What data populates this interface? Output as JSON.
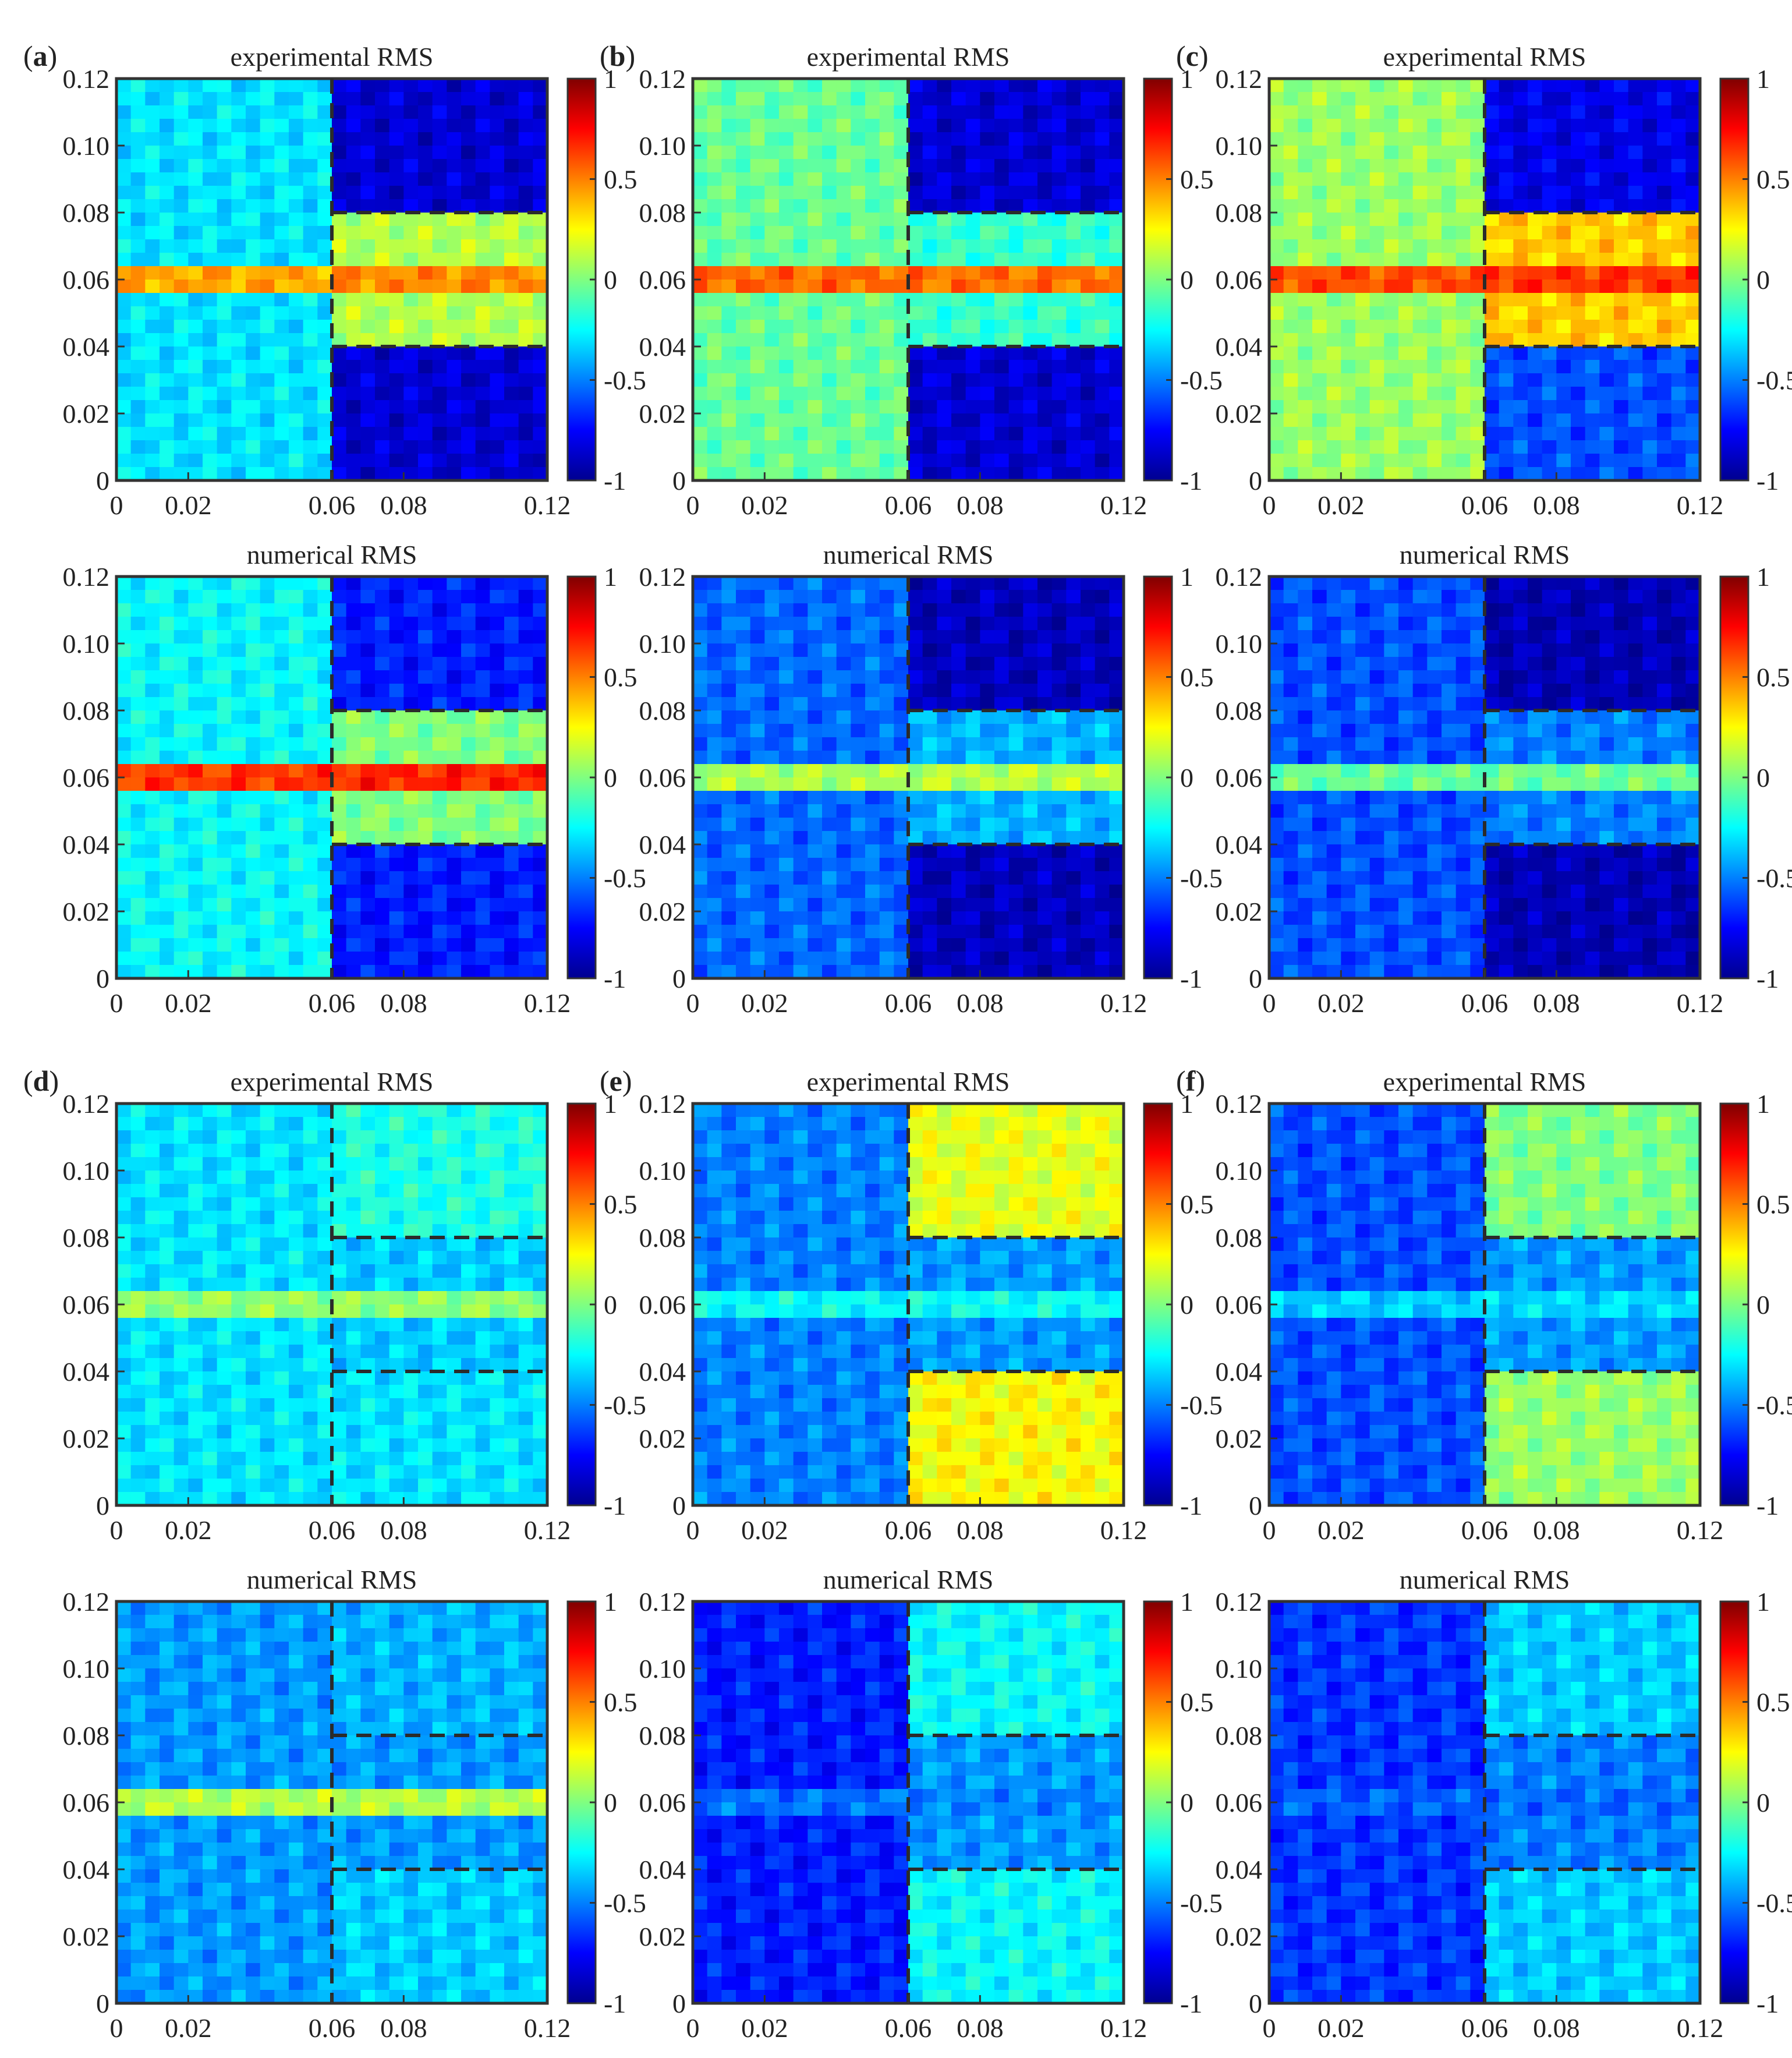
{
  "figure": {
    "experimental_title": "experimental RMS",
    "numerical_title": "numerical RMS",
    "colorbar_ticks": [
      "1",
      "0.5",
      "0",
      "-0.5",
      "-1"
    ],
    "colormap": [
      "#00008f",
      "#0000ff",
      "#0080ff",
      "#00ffff",
      "#80ff80",
      "#ffff00",
      "#ff8000",
      "#ff0000",
      "#800000"
    ],
    "frame_color": "#333333",
    "dash_color": "#2b2b2b"
  },
  "chart_data": [
    {
      "panel": "(a)",
      "label_open": "(",
      "label_letter": "a",
      "label_close": ")",
      "type": "heatmap",
      "row": "experimental",
      "title": "experimental RMS",
      "xlim": [
        0,
        0.12
      ],
      "ylim": [
        0,
        0.12
      ],
      "xticks": [
        "0",
        "0.02",
        "0.06",
        "0.08",
        "0.12"
      ],
      "yticks": [
        "0",
        "0.02",
        "0.04",
        "0.06",
        "0.08",
        "0.10",
        "0.12"
      ],
      "clim": [
        -1,
        1
      ],
      "dashed_lines": {
        "vertical_x": 0.06,
        "horizontal_y": [
          0.04,
          0.08
        ]
      },
      "regions": {
        "left": -0.3,
        "right_top": -0.85,
        "right_mid": 0.1,
        "right_bottom": -0.85,
        "h_line": 0.55
      }
    },
    {
      "panel": "(b)",
      "label_open": "(",
      "label_letter": "b",
      "label_close": ")",
      "type": "heatmap",
      "row": "experimental",
      "title": "experimental RMS",
      "xlim": [
        0,
        0.12
      ],
      "ylim": [
        0,
        0.12
      ],
      "xticks": [
        "0",
        "0.02",
        "0.06",
        "0.08",
        "0.12"
      ],
      "yticks": [
        "0",
        "0.02",
        "0.04",
        "0.06",
        "0.08",
        "0.10",
        "0.12"
      ],
      "clim": [
        -1,
        1
      ],
      "dashed_lines": {
        "vertical_x": 0.06,
        "horizontal_y": [
          0.04,
          0.08
        ]
      },
      "regions": {
        "left": -0.05,
        "right_top": -0.85,
        "right_mid": -0.15,
        "right_bottom": -0.85,
        "h_line": 0.65
      }
    },
    {
      "panel": "(c)",
      "label_open": "(",
      "label_letter": "c",
      "label_close": ")",
      "type": "heatmap",
      "row": "experimental",
      "title": "experimental RMS",
      "xlim": [
        0,
        0.12
      ],
      "ylim": [
        0,
        0.12
      ],
      "xticks": [
        "0",
        "0.02",
        "0.06",
        "0.08",
        "0.12"
      ],
      "yticks": [
        "0",
        "0.02",
        "0.04",
        "0.06",
        "0.08",
        "0.10",
        "0.12"
      ],
      "clim": [
        -1,
        1
      ],
      "dashed_lines": {
        "vertical_x": 0.06,
        "horizontal_y": [
          0.04,
          0.08
        ]
      },
      "regions": {
        "left": 0.05,
        "right_top": -0.8,
        "right_mid": 0.35,
        "right_bottom": -0.6,
        "h_line": 0.7
      }
    },
    {
      "panel": "(a)",
      "label_open": "",
      "label_letter": "",
      "label_close": "",
      "type": "heatmap",
      "row": "numerical",
      "title": "numerical RMS",
      "xlim": [
        0,
        0.12
      ],
      "ylim": [
        0,
        0.12
      ],
      "xticks": [
        "0",
        "0.02",
        "0.06",
        "0.08",
        "0.12"
      ],
      "yticks": [
        "0",
        "0.02",
        "0.04",
        "0.06",
        "0.08",
        "0.10",
        "0.12"
      ],
      "clim": [
        -1,
        1
      ],
      "dashed_lines": {
        "vertical_x": 0.06,
        "horizontal_y": [
          0.04,
          0.08
        ]
      },
      "regions": {
        "left": -0.25,
        "right_top": -0.7,
        "right_mid": 0.0,
        "right_bottom": -0.7,
        "h_line": 0.8
      }
    },
    {
      "panel": "(b)",
      "label_open": "",
      "label_letter": "",
      "label_close": "",
      "type": "heatmap",
      "row": "numerical",
      "title": "numerical RMS",
      "xlim": [
        0,
        0.12
      ],
      "ylim": [
        0,
        0.12
      ],
      "xticks": [
        "0",
        "0.02",
        "0.06",
        "0.08",
        "0.12"
      ],
      "yticks": [
        "0",
        "0.02",
        "0.04",
        "0.06",
        "0.08",
        "0.10",
        "0.12"
      ],
      "clim": [
        -1,
        1
      ],
      "dashed_lines": {
        "vertical_x": 0.06,
        "horizontal_y": [
          0.04,
          0.08
        ]
      },
      "regions": {
        "left": -0.55,
        "right_top": -0.9,
        "right_mid": -0.4,
        "right_bottom": -0.9,
        "h_line": 0.2
      }
    },
    {
      "panel": "(c)",
      "label_open": "",
      "label_letter": "",
      "label_close": "",
      "type": "heatmap",
      "row": "numerical",
      "title": "numerical RMS",
      "xlim": [
        0,
        0.12
      ],
      "ylim": [
        0,
        0.12
      ],
      "xticks": [
        "0",
        "0.02",
        "0.06",
        "0.08",
        "0.12"
      ],
      "yticks": [
        "0",
        "0.02",
        "0.04",
        "0.06",
        "0.08",
        "0.10",
        "0.12"
      ],
      "clim": [
        -1,
        1
      ],
      "dashed_lines": {
        "vertical_x": 0.06,
        "horizontal_y": [
          0.04,
          0.08
        ]
      },
      "regions": {
        "left": -0.6,
        "right_top": -0.92,
        "right_mid": -0.5,
        "right_bottom": -0.92,
        "h_line": 0.05
      }
    },
    {
      "panel": "(d)",
      "label_open": "(",
      "label_letter": "d",
      "label_close": ")",
      "type": "heatmap",
      "row": "experimental",
      "title": "experimental RMS",
      "xlim": [
        0,
        0.12
      ],
      "ylim": [
        0,
        0.12
      ],
      "xticks": [
        "0",
        "0.02",
        "0.06",
        "0.08",
        "0.12"
      ],
      "yticks": [
        "0",
        "0.02",
        "0.04",
        "0.06",
        "0.08",
        "0.10",
        "0.12"
      ],
      "clim": [
        -1,
        1
      ],
      "dashed_lines": {
        "vertical_x": 0.06,
        "horizontal_y": [
          0.04,
          0.08
        ]
      },
      "regions": {
        "left": -0.3,
        "right_top": -0.2,
        "right_mid": -0.35,
        "right_bottom": -0.3,
        "h_line": 0.1
      }
    },
    {
      "panel": "(e)",
      "label_open": "(",
      "label_letter": "e",
      "label_close": ")",
      "type": "heatmap",
      "row": "experimental",
      "title": "experimental RMS",
      "xlim": [
        0,
        0.12
      ],
      "ylim": [
        0,
        0.12
      ],
      "xticks": [
        "0",
        "0.02",
        "0.06",
        "0.08",
        "0.12"
      ],
      "yticks": [
        "0",
        "0.02",
        "0.04",
        "0.06",
        "0.08",
        "0.10",
        "0.12"
      ],
      "clim": [
        -1,
        1
      ],
      "dashed_lines": {
        "vertical_x": 0.06,
        "horizontal_y": [
          0.04,
          0.08
        ]
      },
      "regions": {
        "left": -0.5,
        "right_top": 0.2,
        "right_mid": -0.45,
        "right_bottom": 0.25,
        "h_line": -0.2
      }
    },
    {
      "panel": "(f)",
      "label_open": "(",
      "label_letter": "f",
      "label_close": ")",
      "type": "heatmap",
      "row": "experimental",
      "title": "experimental RMS",
      "xlim": [
        0,
        0.12
      ],
      "ylim": [
        0,
        0.12
      ],
      "xticks": [
        "0",
        "0.02",
        "0.06",
        "0.08",
        "0.12"
      ],
      "yticks": [
        "0",
        "0.02",
        "0.04",
        "0.06",
        "0.08",
        "0.10",
        "0.12"
      ],
      "clim": [
        -1,
        1
      ],
      "dashed_lines": {
        "vertical_x": 0.06,
        "horizontal_y": [
          0.04,
          0.08
        ]
      },
      "regions": {
        "left": -0.6,
        "right_top": 0.0,
        "right_mid": -0.45,
        "right_bottom": 0.05,
        "h_line": -0.3
      }
    },
    {
      "panel": "(d)",
      "label_open": "",
      "label_letter": "",
      "label_close": "",
      "type": "heatmap",
      "row": "numerical",
      "title": "numerical RMS",
      "xlim": [
        0,
        0.12
      ],
      "ylim": [
        0,
        0.12
      ],
      "xticks": [
        "0",
        "0.02",
        "0.06",
        "0.08",
        "0.12"
      ],
      "yticks": [
        "0",
        "0.02",
        "0.04",
        "0.06",
        "0.08",
        "0.10",
        "0.12"
      ],
      "clim": [
        -1,
        1
      ],
      "dashed_lines": {
        "vertical_x": 0.06,
        "horizontal_y": [
          0.04,
          0.08
        ]
      },
      "regions": {
        "left": -0.45,
        "right_top": -0.4,
        "right_mid": -0.45,
        "right_bottom": -0.35,
        "h_line": 0.2
      }
    },
    {
      "panel": "(e)",
      "label_open": "",
      "label_letter": "",
      "label_close": "",
      "type": "heatmap",
      "row": "numerical",
      "title": "numerical RMS",
      "xlim": [
        0,
        0.12
      ],
      "ylim": [
        0,
        0.12
      ],
      "xticks": [
        "0",
        "0.02",
        "0.06",
        "0.08",
        "0.12"
      ],
      "yticks": [
        "0",
        "0.02",
        "0.04",
        "0.06",
        "0.08",
        "0.10",
        "0.12"
      ],
      "clim": [
        -1,
        1
      ],
      "dashed_lines": {
        "vertical_x": 0.06,
        "horizontal_y": [
          0.04,
          0.08
        ]
      },
      "regions": {
        "left": -0.7,
        "right_top": -0.25,
        "right_mid": -0.45,
        "right_bottom": -0.25,
        "h_line": -0.5
      }
    },
    {
      "panel": "(f)",
      "label_open": "",
      "label_letter": "",
      "label_close": "",
      "type": "heatmap",
      "row": "numerical",
      "title": "numerical RMS",
      "xlim": [
        0,
        0.12
      ],
      "ylim": [
        0,
        0.12
      ],
      "xticks": [
        "0",
        "0.02",
        "0.06",
        "0.08",
        "0.12"
      ],
      "yticks": [
        "0",
        "0.02",
        "0.04",
        "0.06",
        "0.08",
        "0.10",
        "0.12"
      ],
      "clim": [
        -1,
        1
      ],
      "dashed_lines": {
        "vertical_x": 0.06,
        "horizontal_y": [
          0.04,
          0.08
        ]
      },
      "regions": {
        "left": -0.65,
        "right_top": -0.35,
        "right_mid": -0.5,
        "right_bottom": -0.35,
        "h_line": -0.55
      }
    }
  ]
}
